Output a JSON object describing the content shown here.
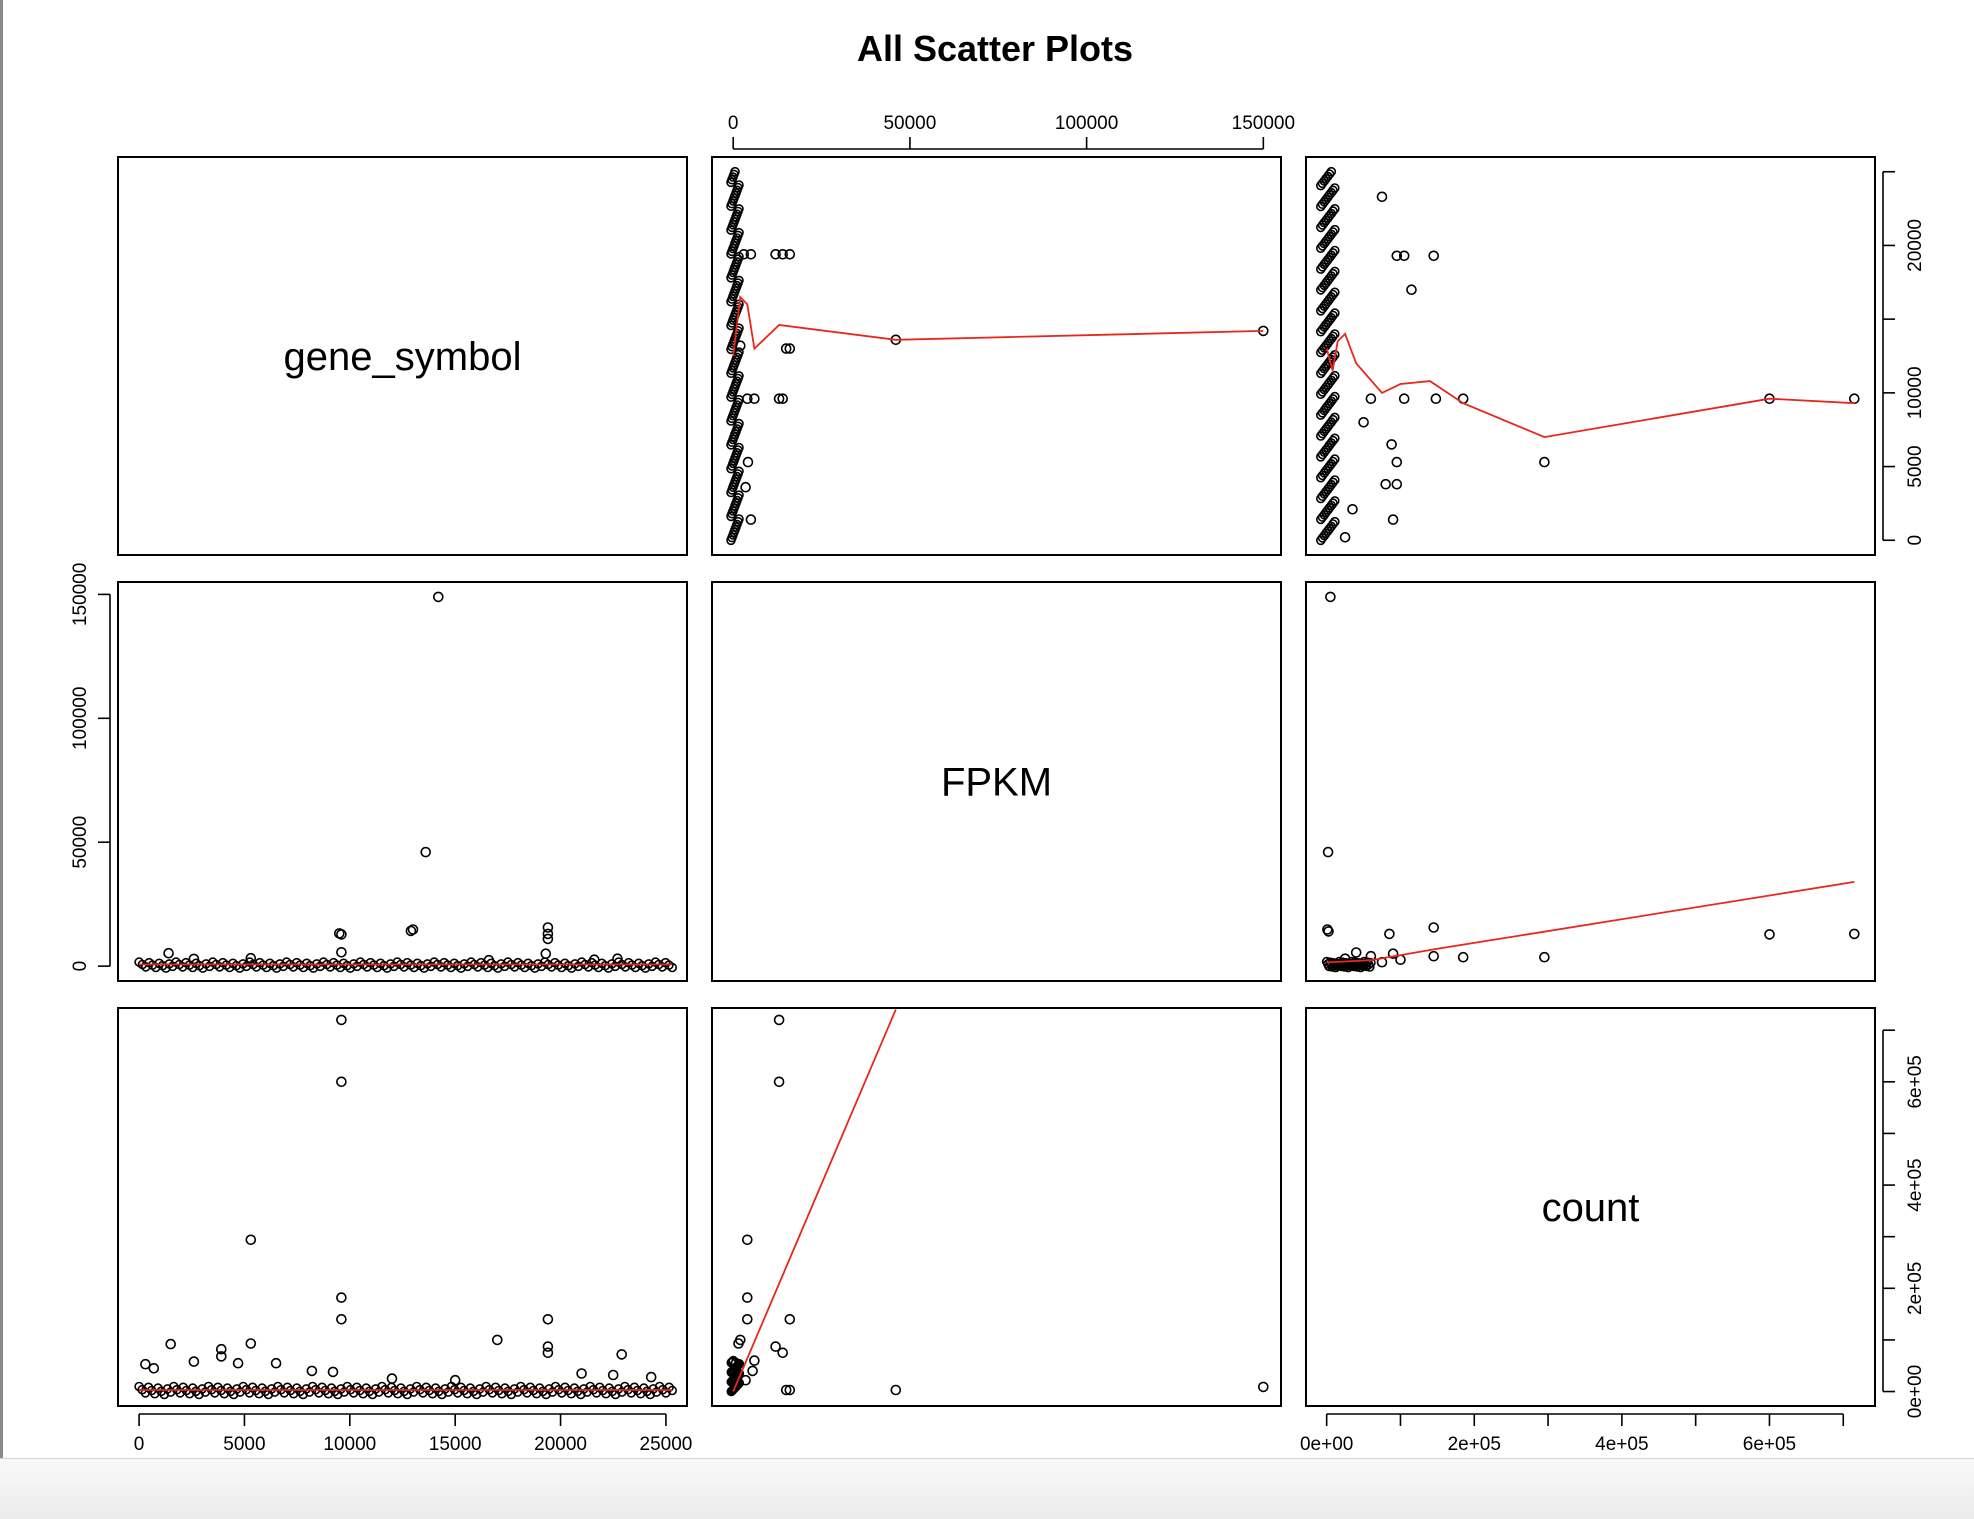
{
  "chart_data": {
    "type": "scatter",
    "title": "All Scatter Plots",
    "variables": [
      "gene_symbol",
      "FPKM",
      "count"
    ],
    "smoother_color": "#e8261c",
    "point_style": "open-circle",
    "axes": {
      "gene_symbol": {
        "range": [
          -1000,
          26000
        ],
        "ticks": [
          0,
          5000,
          10000,
          15000,
          20000,
          25000
        ],
        "tick_labels": [
          "0",
          "5000",
          "10000",
          "15000",
          "20000",
          "25000"
        ]
      },
      "FPKM": {
        "range": [
          -6000,
          155000
        ],
        "ticks": [
          0,
          50000,
          100000,
          150000
        ],
        "tick_labels": [
          "0",
          "50000",
          "100000",
          "150000"
        ]
      },
      "count": {
        "range": [
          -28000,
          743000
        ],
        "ticks": [
          0,
          100000,
          200000,
          300000,
          400000,
          500000,
          600000,
          700000
        ],
        "tick_labels": [
          "0e+00",
          "2e+05",
          "4e+05",
          "6e+05"
        ],
        "labelled_ticks": [
          0,
          200000,
          400000,
          600000
        ]
      },
      "gene_symbol_right": {
        "ticks": [
          0,
          5000,
          10000,
          15000,
          20000,
          25000
        ],
        "tick_labels": [
          "0",
          "5000",
          "10000",
          "20000"
        ],
        "labelled_ticks": [
          0,
          5000,
          10000,
          20000
        ]
      }
    },
    "panels": [
      {
        "x": "FPKM",
        "y": "gene_symbol",
        "points": [
          [
            46000,
            13600
          ],
          [
            150000,
            14200
          ],
          [
            12000,
            19400
          ],
          [
            14000,
            19400
          ],
          [
            16000,
            19400
          ],
          [
            15000,
            13000
          ],
          [
            16000,
            13000
          ],
          [
            13000,
            9600
          ],
          [
            14000,
            9600
          ],
          [
            3000,
            19400
          ],
          [
            5000,
            19400
          ],
          [
            4000,
            9600
          ],
          [
            6000,
            9600
          ],
          [
            2000,
            13200
          ],
          [
            3500,
            3600
          ],
          [
            5000,
            1400
          ],
          [
            4200,
            5300
          ]
        ],
        "smooth": [
          [
            0,
            12500
          ],
          [
            2000,
            16500
          ],
          [
            4000,
            16000
          ],
          [
            6000,
            13000
          ],
          [
            13000,
            14600
          ],
          [
            46000,
            13600
          ],
          [
            150000,
            14200
          ]
        ]
      },
      {
        "x": "count",
        "y": "gene_symbol",
        "points": [
          [
            75000,
            23300
          ],
          [
            95000,
            19300
          ],
          [
            105000,
            19300
          ],
          [
            145000,
            19300
          ],
          [
            115000,
            17000
          ],
          [
            148000,
            9600
          ],
          [
            185000,
            9600
          ],
          [
            105000,
            9600
          ],
          [
            295000,
            5300
          ],
          [
            600000,
            9600
          ],
          [
            715000,
            9600
          ],
          [
            88000,
            6500
          ],
          [
            90000,
            1400
          ],
          [
            80000,
            3800
          ],
          [
            95000,
            3800
          ],
          [
            95000,
            5300
          ],
          [
            60000,
            9600
          ],
          [
            35000,
            2100
          ],
          [
            25000,
            200
          ],
          [
            50000,
            8000
          ]
        ],
        "smooth": [
          [
            0,
            13000
          ],
          [
            8000,
            11500
          ],
          [
            15000,
            13500
          ],
          [
            25000,
            14000
          ],
          [
            40000,
            12000
          ],
          [
            75000,
            10000
          ],
          [
            100000,
            10600
          ],
          [
            140000,
            10800
          ],
          [
            185000,
            9300
          ],
          [
            295000,
            7000
          ],
          [
            600000,
            9600
          ],
          [
            715000,
            9300
          ]
        ]
      },
      {
        "x": "gene_symbol",
        "y": "FPKM",
        "points": [
          [
            14200,
            149000
          ],
          [
            13600,
            46000
          ],
          [
            13000,
            14800
          ],
          [
            12900,
            14200
          ],
          [
            9600,
            12800
          ],
          [
            9500,
            13200
          ],
          [
            19400,
            15600
          ],
          [
            19400,
            13000
          ],
          [
            19400,
            11000
          ],
          [
            1400,
            5200
          ],
          [
            19300,
            5000
          ],
          [
            5300,
            3200
          ],
          [
            9600,
            5600
          ],
          [
            22700,
            3000
          ],
          [
            2600,
            2900
          ],
          [
            21600,
            2600
          ],
          [
            16600,
            2400
          ]
        ],
        "smooth": [
          [
            0,
            700
          ],
          [
            25300,
            700
          ]
        ]
      },
      {
        "x": "count",
        "y": "FPKM",
        "points": [
          [
            5000,
            149000
          ],
          [
            2000,
            46000
          ],
          [
            1000,
            14800
          ],
          [
            2500,
            14000
          ],
          [
            145000,
            15600
          ],
          [
            85000,
            13000
          ],
          [
            600000,
            12800
          ],
          [
            715000,
            13000
          ],
          [
            185000,
            3600
          ],
          [
            295000,
            3600
          ],
          [
            145000,
            4000
          ],
          [
            90000,
            5000
          ],
          [
            100000,
            2600
          ],
          [
            75000,
            1600
          ],
          [
            60000,
            4000
          ],
          [
            40000,
            5500
          ],
          [
            25000,
            3000
          ]
        ],
        "smooth": [
          [
            0,
            1500
          ],
          [
            60000,
            2400
          ],
          [
            150000,
            7000
          ],
          [
            715000,
            34000
          ]
        ]
      },
      {
        "x": "gene_symbol",
        "y": "count",
        "points": [
          [
            9600,
            720000
          ],
          [
            9600,
            600000
          ],
          [
            5300,
            294000
          ],
          [
            9600,
            182000
          ],
          [
            9600,
            140000
          ],
          [
            19400,
            140000
          ],
          [
            17000,
            100000
          ],
          [
            1500,
            92000
          ],
          [
            5300,
            93000
          ],
          [
            3900,
            82000
          ],
          [
            3900,
            68000
          ],
          [
            19400,
            87000
          ],
          [
            19400,
            75000
          ],
          [
            22900,
            72000
          ],
          [
            2600,
            58000
          ],
          [
            4700,
            55000
          ],
          [
            6500,
            55000
          ],
          [
            300,
            53000
          ],
          [
            700,
            45000
          ],
          [
            8200,
            40000
          ],
          [
            9200,
            38000
          ],
          [
            22500,
            32000
          ],
          [
            12000,
            25000
          ],
          [
            15000,
            22000
          ],
          [
            21000,
            35000
          ],
          [
            24300,
            28000
          ]
        ],
        "smooth": [
          [
            0,
            3000
          ],
          [
            25300,
            3000
          ]
        ]
      },
      {
        "x": "FPKM",
        "y": "count",
        "points": [
          [
            13000,
            720000
          ],
          [
            13000,
            600000
          ],
          [
            4000,
            294000
          ],
          [
            4000,
            182000
          ],
          [
            16000,
            140000
          ],
          [
            4000,
            140000
          ],
          [
            12000,
            87000
          ],
          [
            14000,
            75000
          ],
          [
            2000,
            100000
          ],
          [
            1500,
            93000
          ],
          [
            6000,
            60000
          ],
          [
            5500,
            40000
          ],
          [
            46000,
            3000
          ],
          [
            150000,
            9000
          ],
          [
            15000,
            3000
          ],
          [
            16000,
            3000
          ],
          [
            3500,
            22000
          ],
          [
            800,
            55000
          ]
        ],
        "smooth": [
          [
            0,
            0
          ],
          [
            46000,
            740000
          ]
        ]
      }
    ]
  }
}
